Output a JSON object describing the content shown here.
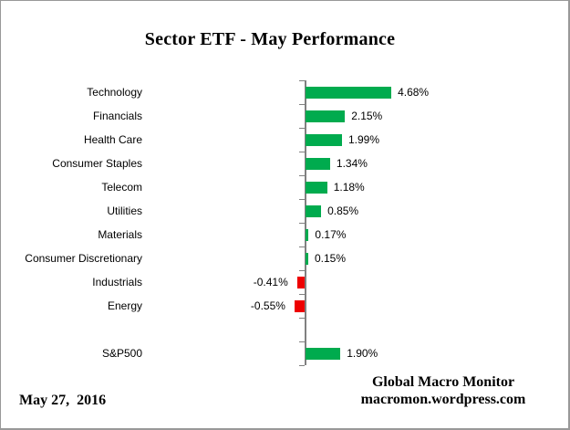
{
  "title": "Sector ETF - May Performance",
  "footer": {
    "date": "May 27,  2016",
    "brand_line1": "Global Macro Monitor",
    "brand_line2": "macromon.wordpress.com"
  },
  "chart_data": {
    "type": "bar",
    "orientation": "horizontal",
    "title": "Sector ETF - May Performance",
    "unit": "%",
    "categories": [
      "Technology",
      "Financials",
      "Health Care",
      "Consumer Staples",
      "Telecom",
      "Utilities",
      "Materials",
      "Consumer Discretionary",
      "Industrials",
      "Energy",
      "",
      "S&P500"
    ],
    "values": [
      4.68,
      2.15,
      1.99,
      1.34,
      1.18,
      0.85,
      0.17,
      0.15,
      -0.41,
      -0.55,
      null,
      1.9
    ],
    "value_labels": [
      "4.68%",
      "2.15%",
      "1.99%",
      "1.34%",
      "1.18%",
      "0.85%",
      "0.17%",
      "0.15%",
      "-0.41%",
      "-0.55%",
      "",
      "1.90%"
    ],
    "positive_color": "#00AB4E",
    "negative_color": "#EE0000",
    "axis_color": "#808080",
    "value_axis_labels_visible": false,
    "grid": false,
    "legend": false
  }
}
